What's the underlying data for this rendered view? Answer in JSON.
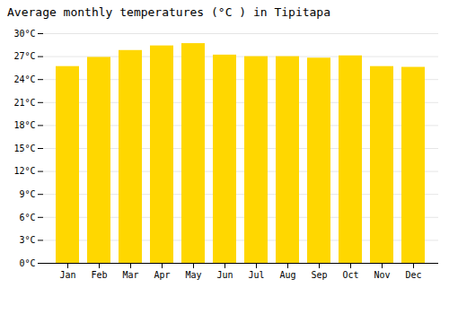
{
  "chart_data": {
    "type": "bar",
    "title": "Average monthly temperatures (°C ) in Tipitapa",
    "categories": [
      "Jan",
      "Feb",
      "Mar",
      "Apr",
      "May",
      "Jun",
      "Jul",
      "Aug",
      "Sep",
      "Oct",
      "Nov",
      "Dec"
    ],
    "values": [
      25.7,
      26.9,
      27.8,
      28.4,
      28.7,
      27.2,
      27.0,
      27.0,
      26.8,
      27.1,
      25.7,
      25.6
    ],
    "color": "#FFD700",
    "ylim": [
      0,
      30
    ],
    "yticks": [
      {
        "value": 0,
        "label": "0°C"
      },
      {
        "value": 3,
        "label": "3°C"
      },
      {
        "value": 6,
        "label": "6°C"
      },
      {
        "value": 9,
        "label": "9°C"
      },
      {
        "value": 12,
        "label": "12°C"
      },
      {
        "value": 15,
        "label": "15°C"
      },
      {
        "value": 18,
        "label": "18°C"
      },
      {
        "value": 21,
        "label": "21°C"
      },
      {
        "value": 24,
        "label": "24°C"
      },
      {
        "value": 27,
        "label": "27°C"
      },
      {
        "value": 30,
        "label": "30°C"
      }
    ],
    "grid": true
  }
}
